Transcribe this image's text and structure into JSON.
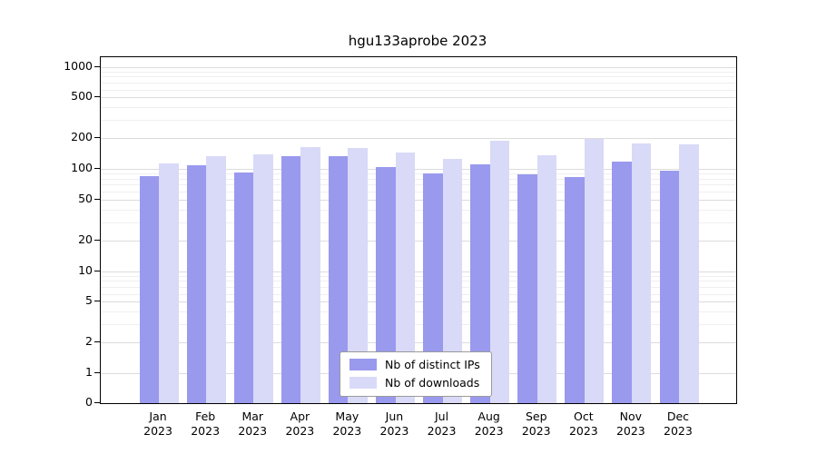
{
  "title": "hgu133aprobe 2023",
  "chart_data": {
    "type": "bar",
    "title": "hgu133aprobe 2023",
    "y_scale": "log",
    "xlabel": "",
    "ylabel": "",
    "grid": true,
    "categories": [
      "Jan 2023",
      "Feb 2023",
      "Mar 2023",
      "Apr 2023",
      "May 2023",
      "Jun 2023",
      "Jul 2023",
      "Aug 2023",
      "Sep 2023",
      "Oct 2023",
      "Nov 2023",
      "Dec 2023"
    ],
    "series": [
      {
        "name": "Nb of distinct IPs",
        "color": "#9999ee",
        "values": [
          85,
          108,
          92,
          133,
          134,
          104,
          90,
          110,
          88,
          84,
          117,
          96
        ]
      },
      {
        "name": "Nb of downloads",
        "color": "#d9d9f8",
        "values": [
          113,
          134,
          138,
          165,
          160,
          146,
          126,
          188,
          136,
          198,
          176,
          175
        ]
      }
    ],
    "yticks": [
      0,
      1,
      2,
      5,
      10,
      20,
      50,
      100,
      200,
      500,
      1000
    ],
    "minor_yticks": [
      3,
      4,
      6,
      7,
      8,
      9,
      30,
      40,
      60,
      70,
      80,
      90,
      300,
      400,
      600,
      700,
      800,
      900
    ],
    "ylim": [
      0,
      1000
    ],
    "legend": {
      "position": "bottom-center-inside",
      "entries": [
        "Nb of distinct IPs",
        "Nb of downloads"
      ]
    }
  }
}
